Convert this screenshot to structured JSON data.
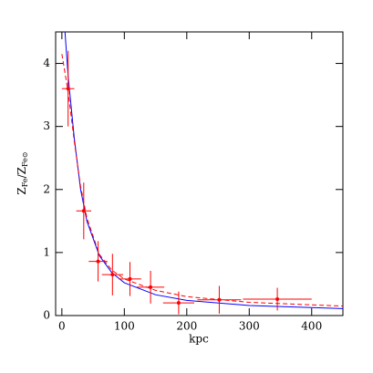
{
  "chart_data": {
    "type": "scatter",
    "xlabel": "kpc",
    "ylabel": [
      "Z",
      "Fe",
      "/Z",
      "Fe⊙"
    ],
    "xlim": [
      -10,
      450
    ],
    "ylim": [
      0,
      4.5
    ],
    "xticks": [
      0,
      100,
      200,
      300,
      400
    ],
    "yticks": [
      0,
      1,
      2,
      3,
      4
    ],
    "points": {
      "color": "#ff0000",
      "x": [
        10,
        35,
        58,
        81,
        109,
        142,
        187,
        252,
        345
      ],
      "values": [
        3.6,
        1.66,
        0.86,
        0.65,
        0.58,
        0.45,
        0.2,
        0.25,
        0.26
      ],
      "xerr": [
        10,
        12,
        15,
        17,
        18,
        22,
        25,
        35,
        55
      ],
      "yerr": [
        0.6,
        0.45,
        0.32,
        0.33,
        0.27,
        0.26,
        0.18,
        0.22,
        0.18
      ]
    },
    "curves": [
      {
        "color": "#0000ff",
        "dash": false,
        "x": [
          5,
          10,
          20,
          30,
          40,
          60,
          80,
          100,
          150,
          200,
          300,
          450
        ],
        "values": [
          4.5,
          3.8,
          2.8,
          2.0,
          1.5,
          0.95,
          0.68,
          0.52,
          0.33,
          0.24,
          0.16,
          0.11
        ]
      },
      {
        "color": "#ff0000",
        "dash": true,
        "x": [
          0,
          10,
          20,
          30,
          40,
          60,
          80,
          100,
          150,
          200,
          300,
          450
        ],
        "values": [
          4.15,
          3.55,
          2.75,
          2.05,
          1.55,
          0.97,
          0.72,
          0.58,
          0.4,
          0.3,
          0.21,
          0.15
        ]
      }
    ]
  }
}
